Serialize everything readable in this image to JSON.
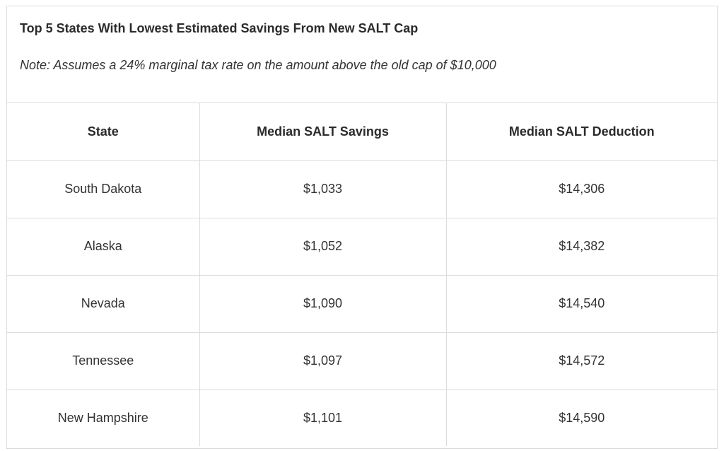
{
  "table": {
    "title": "Top 5 States With Lowest Estimated Savings From New SALT Cap",
    "note": "Note: Assumes a 24% marginal tax rate on the amount above the old cap of $10,000",
    "headers": [
      "State",
      "Median SALT Savings",
      "Median SALT Deduction"
    ],
    "rows": [
      [
        "South Dakota",
        "$1,033",
        "$14,306"
      ],
      [
        "Alaska",
        "$1,052",
        "$14,382"
      ],
      [
        "Nevada",
        "$1,090",
        "$14,540"
      ],
      [
        "Tennessee",
        "$1,097",
        "$14,572"
      ],
      [
        "New Hampshire",
        "$1,101",
        "$14,590"
      ]
    ]
  }
}
